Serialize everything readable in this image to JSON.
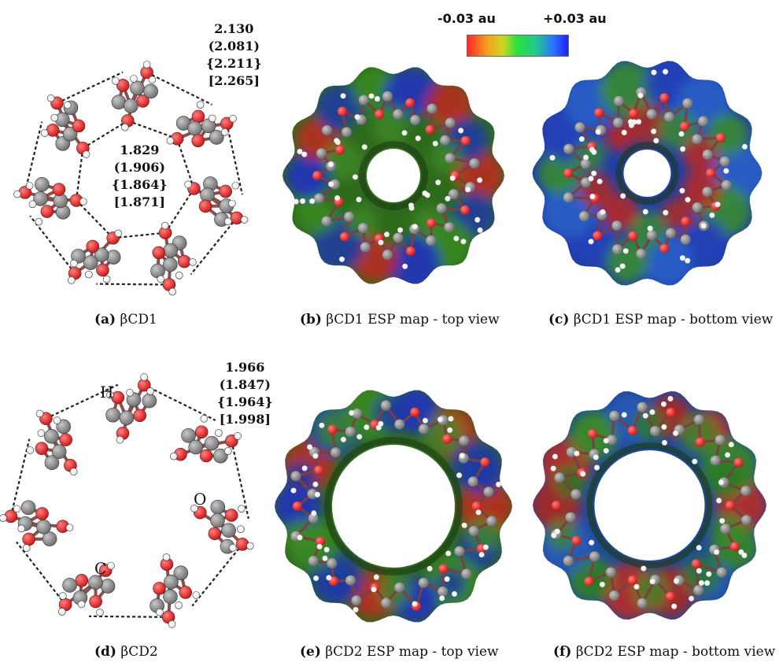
{
  "colorbar": {
    "min_label": "-0.03 au",
    "max_label": "+0.03 au",
    "colors": [
      "#ff2a2a",
      "#cfd620",
      "#28e040",
      "#2a74ff",
      "#2020ff"
    ]
  },
  "panels": [
    {
      "letter": "(a)",
      "text": "βCD1"
    },
    {
      "letter": "(b)",
      "text": "βCD1 ESP map - top view"
    },
    {
      "letter": "(c)",
      "text": "βCD1 ESP map - bottom view"
    },
    {
      "letter": "(d)",
      "text": "βCD2"
    },
    {
      "letter": "(e)",
      "text": "βCD2 ESP map - top view"
    },
    {
      "letter": "(f)",
      "text": "βCD2 ESP map - bottom view"
    }
  ],
  "bond_values": {
    "bcd1_outer": [
      "2.130",
      "(2.081)",
      "{2.211}",
      "[2.265]"
    ],
    "bcd1_inner": [
      "1.829",
      "(1.906)",
      "{1.864}",
      "[1.871]"
    ],
    "bcd2_outer": [
      "1.966",
      "(1.847)",
      "{1.964}",
      "[1.998]"
    ]
  },
  "atom_labels": {
    "h": "H",
    "o": "O",
    "c": "C"
  },
  "atom_colors": {
    "carbon": "#6b6b6b",
    "oxygen": "#d01010",
    "hydrogen": "#e6e6e6"
  }
}
